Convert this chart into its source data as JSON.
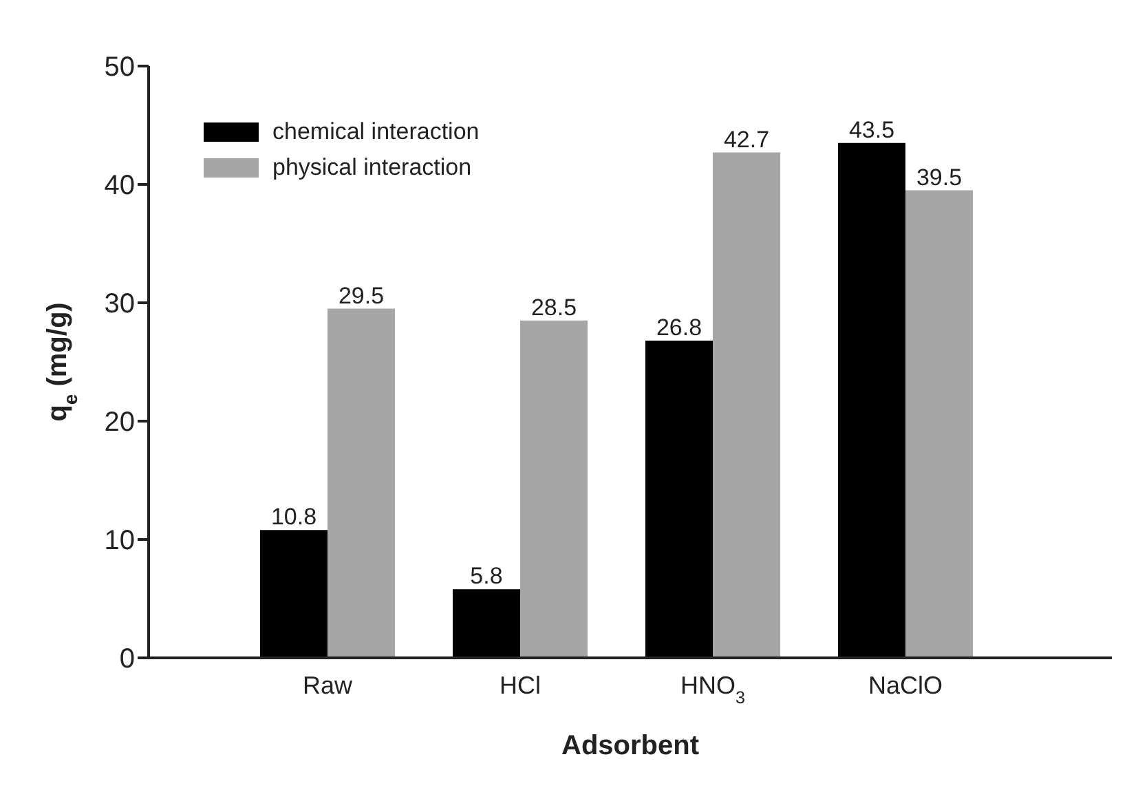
{
  "chart_data": {
    "type": "bar",
    "xlabel": "Adsorbent",
    "ylabel": "q$_{e}$ (mg/g)",
    "categories": [
      "Raw",
      "HCl",
      "HNO$_{3}$",
      "NaClO"
    ],
    "series": [
      {
        "name": "chemical interaction",
        "color": "#000000",
        "values": [
          10.8,
          5.8,
          26.8,
          43.5
        ]
      },
      {
        "name": "physical interaction",
        "color": "#a6a6a6",
        "values": [
          29.5,
          28.5,
          42.7,
          39.5
        ]
      }
    ],
    "ylim": [
      0,
      50
    ],
    "yticks": [
      0,
      10,
      20,
      30,
      40,
      50
    ],
    "grid": false,
    "legend": "top left",
    "data_labels": true
  }
}
